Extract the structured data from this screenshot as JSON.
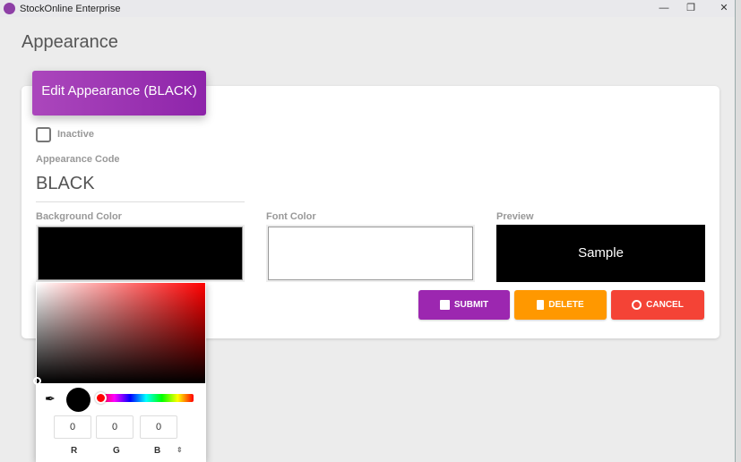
{
  "window": {
    "title": "StockOnline Enterprise",
    "minimize": "—",
    "restore": "❐",
    "close": "✕"
  },
  "page": {
    "title": "Appearance"
  },
  "card": {
    "header": "Edit Appearance (BLACK)",
    "inactive_label": "Inactive",
    "inactive_checked": false,
    "code_label": "Appearance Code",
    "code_value": "BLACK",
    "bg_label": "Background Color",
    "bg_color": "#000000",
    "font_label": "Font Color",
    "font_color": "#ffffff",
    "preview_label": "Preview",
    "preview_text": "Sample"
  },
  "buttons": {
    "submit": "SUBMIT",
    "delete": "DELETE",
    "cancel": "CANCEL",
    "submit_color": "#9c27b0",
    "delete_color": "#ff9800",
    "cancel_color": "#f44336"
  },
  "picker": {
    "r": "0",
    "g": "0",
    "b": "0",
    "r_label": "R",
    "g_label": "G",
    "b_label": "B",
    "toggle": "⇕"
  }
}
